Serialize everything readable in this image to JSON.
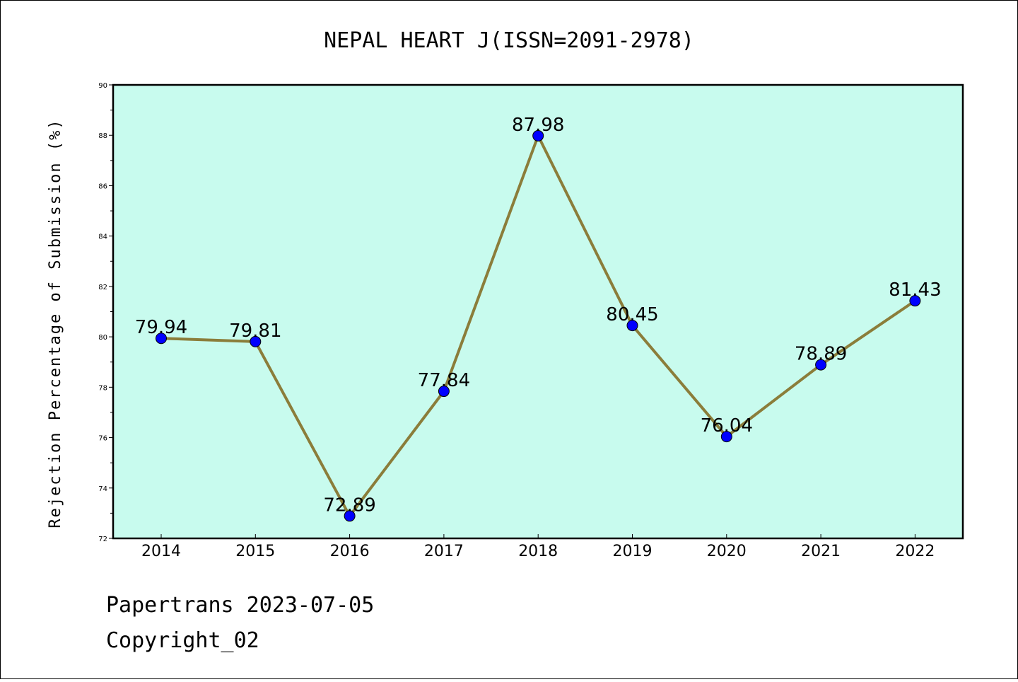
{
  "chart_data": {
    "type": "line",
    "title": "NEPAL HEART J(ISSN=2091-2978)",
    "xlabel": "",
    "ylabel": "Rejection Percentage of Submission (%)",
    "categories": [
      "2014",
      "2015",
      "2016",
      "2017",
      "2018",
      "2019",
      "2020",
      "2021",
      "2022"
    ],
    "values": [
      79.94,
      79.81,
      72.89,
      77.84,
      87.98,
      80.45,
      76.04,
      78.89,
      81.43
    ],
    "data_labels": [
      "79.94",
      "79.81",
      "72.89",
      "77.84",
      "87.98",
      "80.45",
      "76.04",
      "78.89",
      "81.43"
    ],
    "ylim": [
      72,
      90
    ],
    "yticks": [
      "72",
      "74",
      "76",
      "78",
      "80",
      "82",
      "84",
      "86",
      "88",
      "90"
    ],
    "grid": false,
    "plot_background": "#c8fbee",
    "line_color": "#8b7d3a",
    "marker_color": "#0000ff"
  },
  "footer": {
    "line1": "Papertrans 2023-07-05",
    "line2": "Copyright_02"
  }
}
